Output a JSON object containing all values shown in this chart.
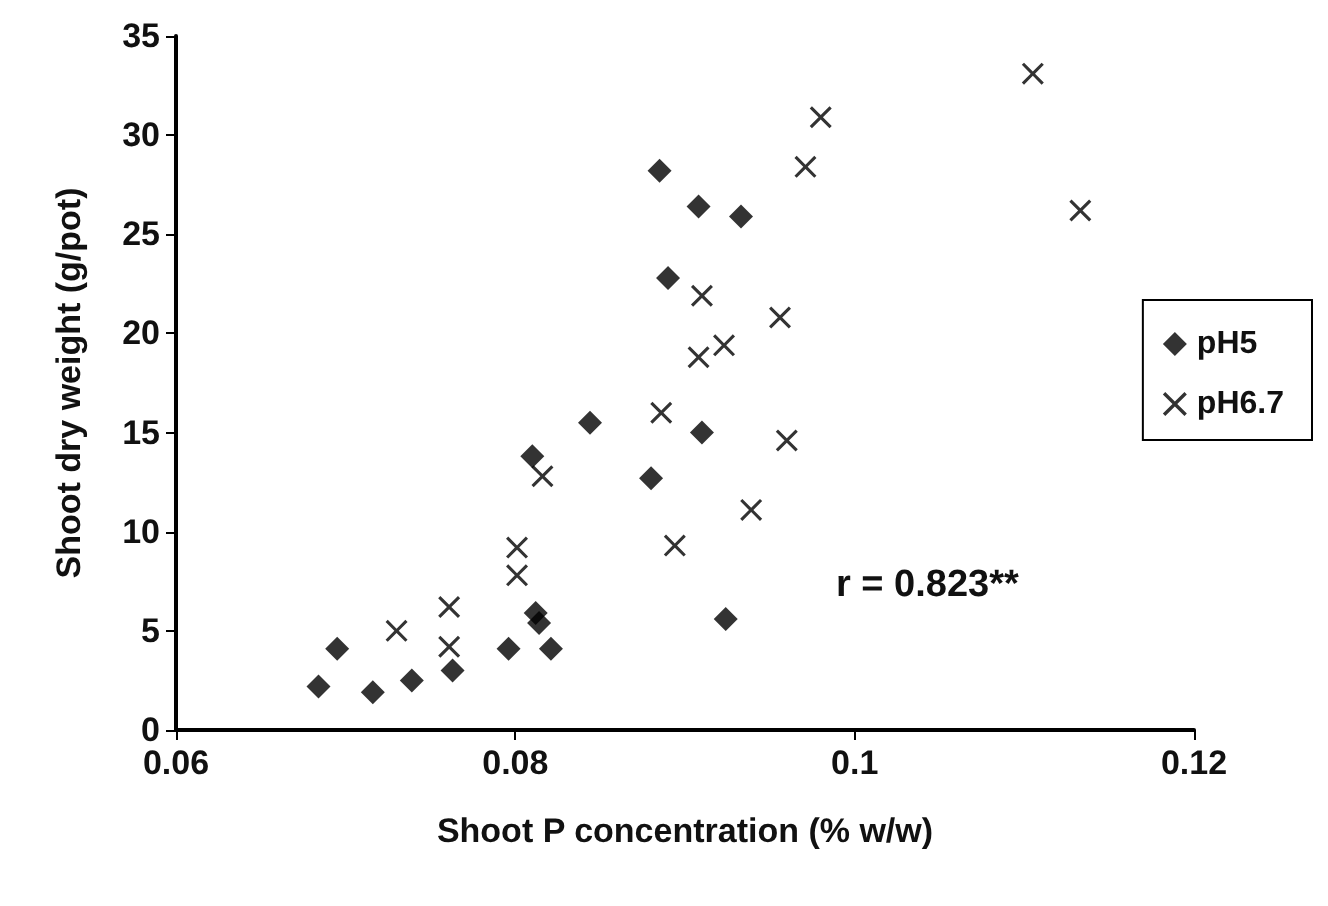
{
  "chart_data": {
    "type": "scatter",
    "xlabel": "Shoot P concentration (% w/w)",
    "ylabel": "Shoot dry weight (g/pot)",
    "xlim": [
      0.06,
      0.12
    ],
    "xticks": [
      0.06,
      0.08,
      0.1,
      0.12
    ],
    "ylim": [
      0,
      35
    ],
    "yticks": [
      0,
      5,
      10,
      15,
      20,
      25,
      30,
      35
    ],
    "grid": false,
    "legend": "right",
    "annotations": [
      "r = 0.823**"
    ],
    "series": [
      {
        "name": "pH5",
        "color": "#000000",
        "marker": "diamond",
        "x": [
          0.0684,
          0.0695,
          0.0716,
          0.0739,
          0.0763,
          0.0796,
          0.0821,
          0.081,
          0.0844,
          0.0812,
          0.0814,
          0.0885,
          0.0908,
          0.0933,
          0.089,
          0.091,
          0.088,
          0.0924
        ],
        "values": [
          2.2,
          4.1,
          1.9,
          2.5,
          3.0,
          4.1,
          4.1,
          13.8,
          15.5,
          5.9,
          5.4,
          28.2,
          26.4,
          25.9,
          22.8,
          15.0,
          12.7,
          5.6
        ]
      },
      {
        "name": "pH6.7",
        "color": "#000000",
        "marker": "cross",
        "x": [
          0.073,
          0.0761,
          0.0761,
          0.0801,
          0.0801,
          0.0816,
          0.0971,
          0.098,
          0.091,
          0.0956,
          0.0923,
          0.0908,
          0.0886,
          0.096,
          0.0939,
          0.0894,
          0.1105,
          0.1133
        ],
        "values": [
          5.0,
          6.2,
          4.2,
          9.2,
          7.8,
          12.8,
          28.4,
          30.9,
          21.9,
          20.8,
          19.4,
          18.8,
          16.0,
          14.6,
          11.1,
          9.3,
          33.1,
          26.2
        ]
      }
    ]
  }
}
